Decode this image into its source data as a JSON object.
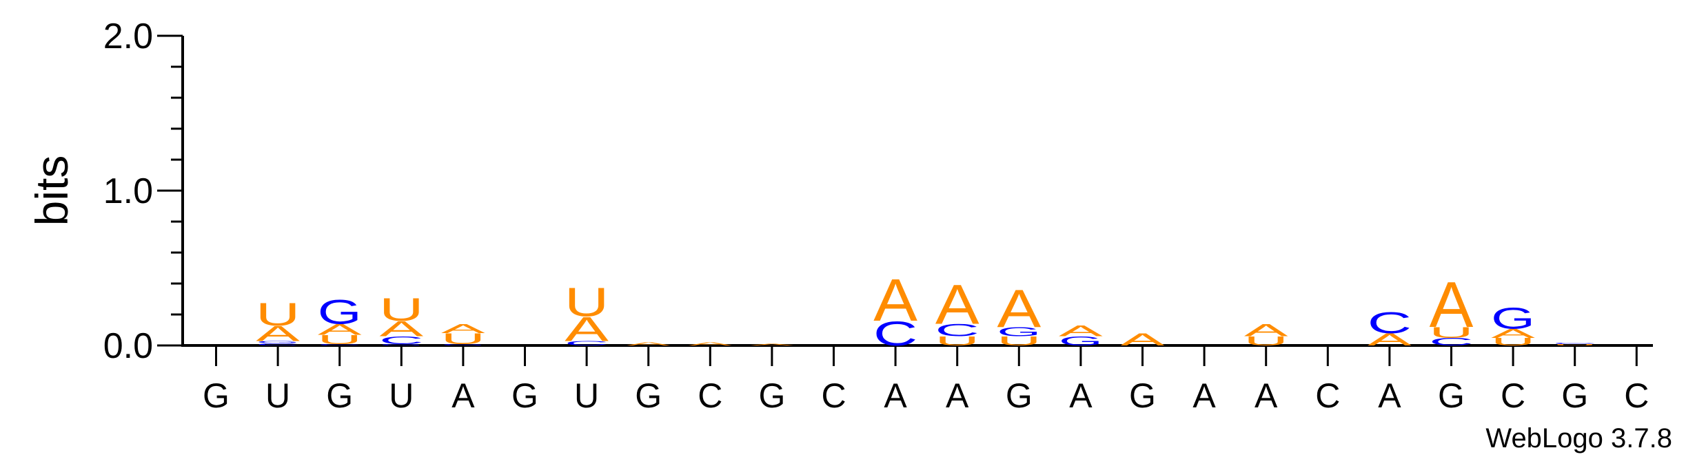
{
  "chart_data": {
    "type": "sequence-logo",
    "title": "",
    "ylabel": "bits",
    "ylim": [
      0,
      2
    ],
    "yticks": [
      "0.0",
      "1.0",
      "2.0"
    ],
    "xlabels": [
      "G",
      "U",
      "G",
      "U",
      "A",
      "G",
      "U",
      "G",
      "C",
      "G",
      "C",
      "A",
      "A",
      "G",
      "A",
      "G",
      "A",
      "A",
      "C",
      "A",
      "G",
      "C",
      "G",
      "C"
    ],
    "watermark": "WebLogo 3.7.8",
    "colors": {
      "A": "#ff8c00",
      "U": "#ff8c00",
      "C": "#0000ff",
      "G": "#0000ff",
      "axis": "#000000"
    },
    "stacks": [
      [],
      [
        {
          "letter": "C",
          "bits": 0.015
        },
        {
          "letter": "G",
          "bits": 0.015
        },
        {
          "letter": "A",
          "bits": 0.1
        },
        {
          "letter": "U",
          "bits": 0.15
        }
      ],
      [
        {
          "letter": "C",
          "bits": 0.01
        },
        {
          "letter": "U",
          "bits": 0.06
        },
        {
          "letter": "A",
          "bits": 0.07
        },
        {
          "letter": "G",
          "bits": 0.16
        }
      ],
      [
        {
          "letter": "G",
          "bits": 0.01
        },
        {
          "letter": "C",
          "bits": 0.05
        },
        {
          "letter": "A",
          "bits": 0.1
        },
        {
          "letter": "U",
          "bits": 0.15
        }
      ],
      [
        {
          "letter": "G",
          "bits": 0.01
        },
        {
          "letter": "U",
          "bits": 0.07
        },
        {
          "letter": "A",
          "bits": 0.06
        }
      ],
      [],
      [
        {
          "letter": "C",
          "bits": 0.03
        },
        {
          "letter": "A",
          "bits": 0.16
        },
        {
          "letter": "U",
          "bits": 0.19
        }
      ],
      [
        {
          "letter": "A",
          "bits": 0.02
        }
      ],
      [
        {
          "letter": "A",
          "bits": 0.02
        }
      ],
      [
        {
          "letter": "A",
          "bits": 0.01
        }
      ],
      [],
      [
        {
          "letter": "C",
          "bits": 0.16
        },
        {
          "letter": "A",
          "bits": 0.28
        }
      ],
      [
        {
          "letter": "U",
          "bits": 0.06
        },
        {
          "letter": "C",
          "bits": 0.08
        },
        {
          "letter": "A",
          "bits": 0.26
        }
      ],
      [
        {
          "letter": "U",
          "bits": 0.06
        },
        {
          "letter": "G",
          "bits": 0.06
        },
        {
          "letter": "A",
          "bits": 0.25
        }
      ],
      [
        {
          "letter": "G",
          "bits": 0.06
        },
        {
          "letter": "A",
          "bits": 0.07
        }
      ],
      [
        {
          "letter": "A",
          "bits": 0.08
        }
      ],
      [],
      [
        {
          "letter": "U",
          "bits": 0.06
        },
        {
          "letter": "A",
          "bits": 0.08
        }
      ],
      [],
      [
        {
          "letter": "A",
          "bits": 0.08
        },
        {
          "letter": "C",
          "bits": 0.14
        }
      ],
      [
        {
          "letter": "C",
          "bits": 0.05
        },
        {
          "letter": "U",
          "bits": 0.07
        },
        {
          "letter": "A",
          "bits": 0.3
        }
      ],
      [
        {
          "letter": "U",
          "bits": 0.05
        },
        {
          "letter": "A",
          "bits": 0.06
        },
        {
          "letter": "G",
          "bits": 0.14
        }
      ],
      [
        {
          "letter": "U",
          "bits": 0.01
        },
        {
          "letter": "C",
          "bits": 0.01
        }
      ],
      []
    ]
  }
}
